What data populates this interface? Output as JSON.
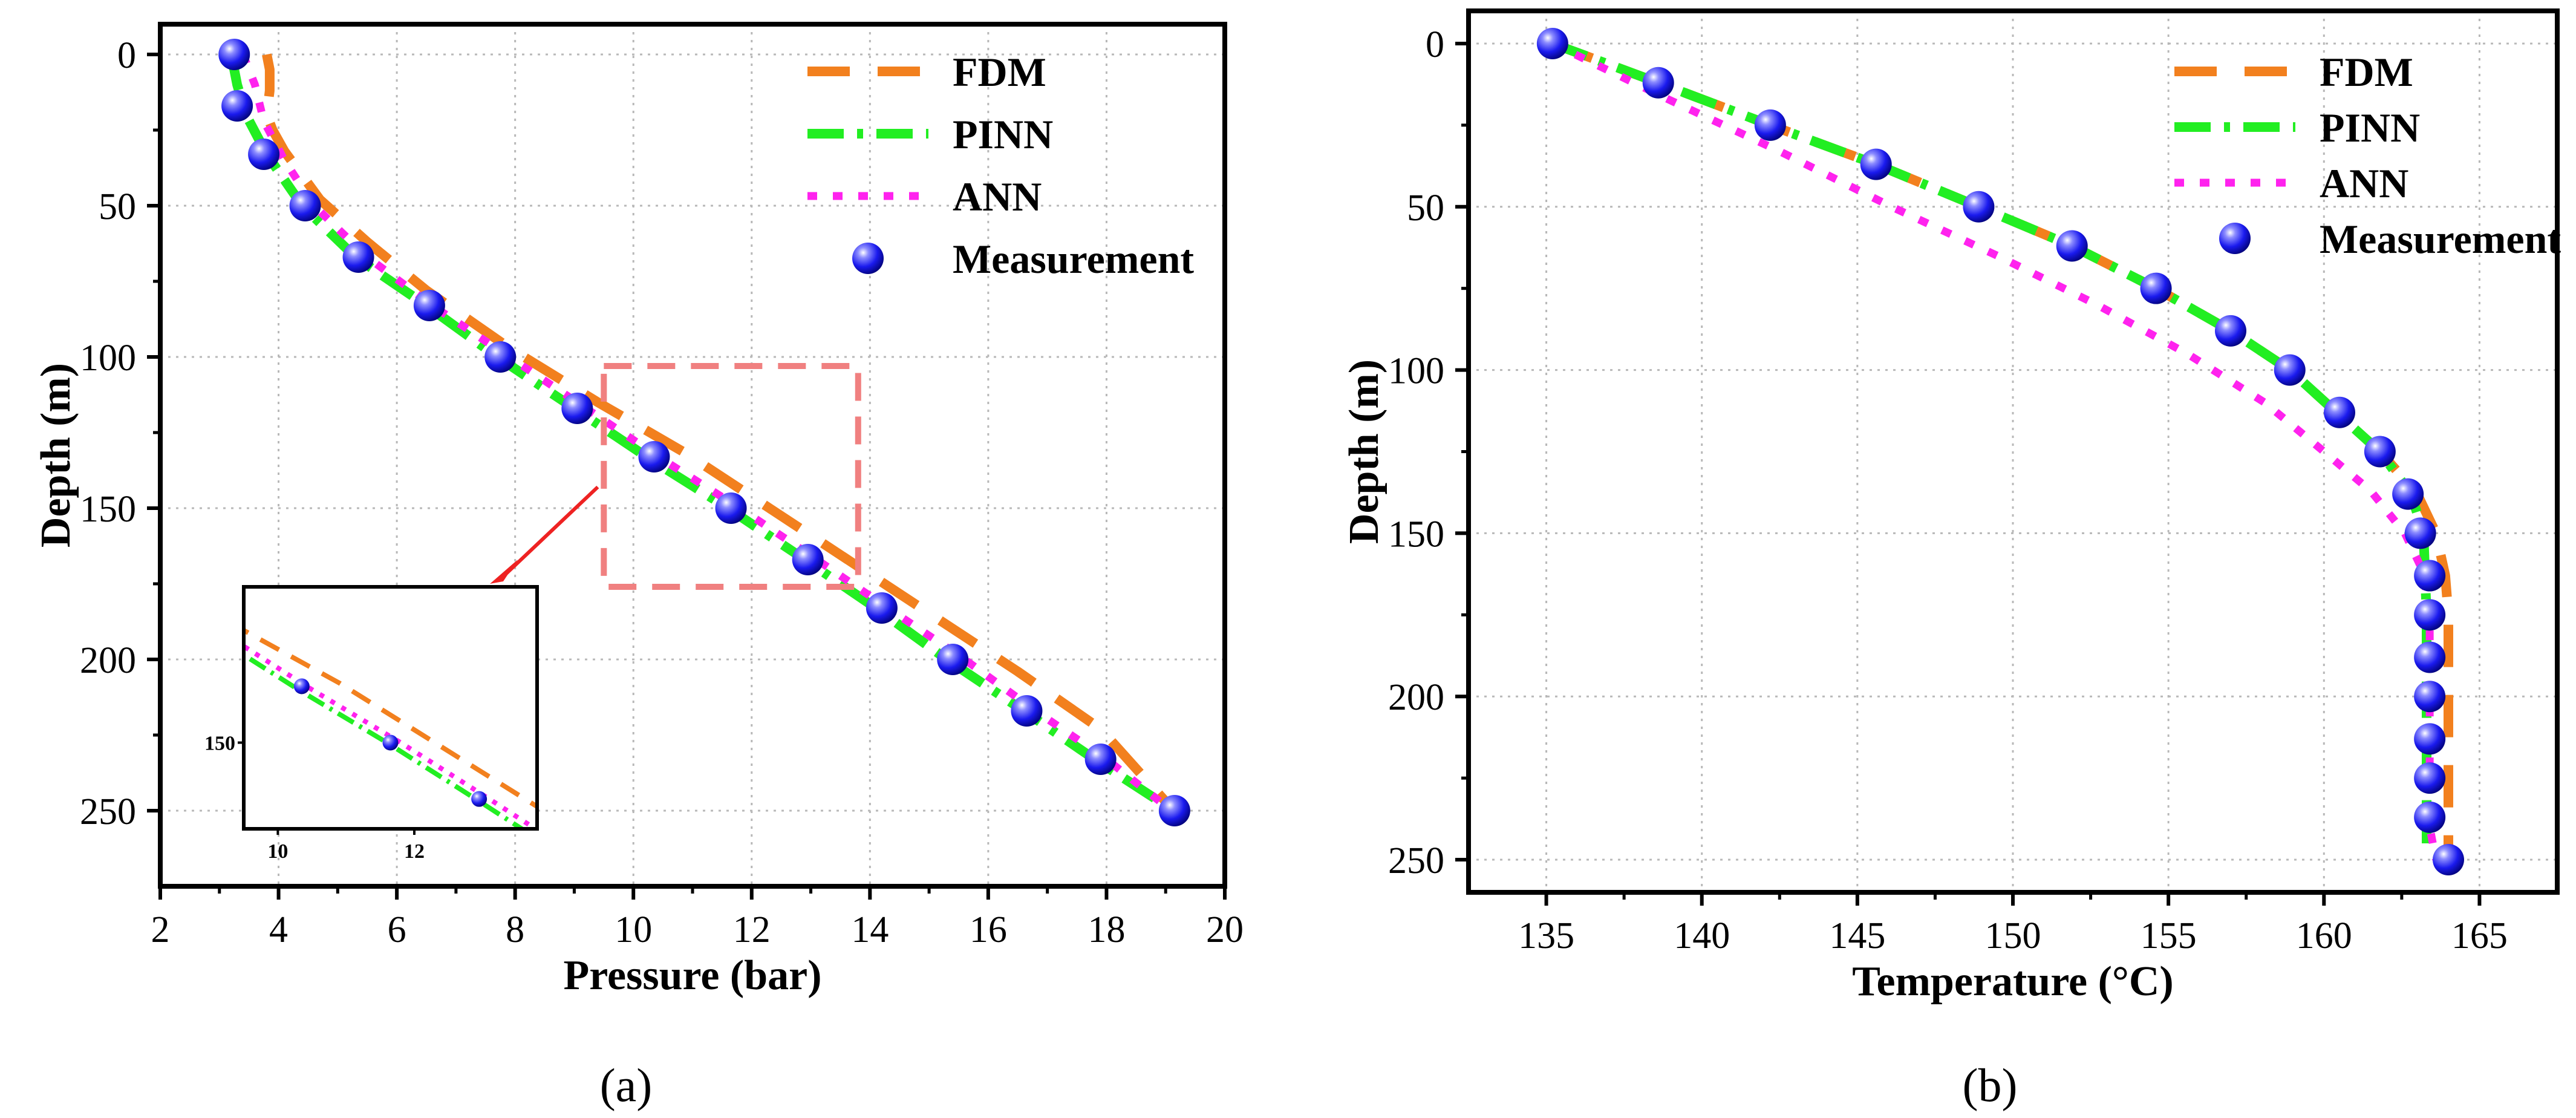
{
  "colors": {
    "fdm": "#f2801e",
    "pinn": "#22ee22",
    "ann": "#ff22ee",
    "measurement": "#1a1aee",
    "zoom_box": "#f08080",
    "arrow": "#ee2222",
    "grid": "#b8b8b8"
  },
  "chart_data": [
    {
      "type": "line",
      "caption": "(a)",
      "xlabel": "Pressure (bar)",
      "ylabel": "Depth (m)",
      "xlim": [
        2,
        20
      ],
      "ylim": [
        275,
        -10
      ],
      "xticks": [
        "2",
        "4",
        "6",
        "8",
        "10",
        "12",
        "14",
        "16",
        "18",
        "20"
      ],
      "yticks": [
        "0",
        "50",
        "100",
        "150",
        "200",
        "250"
      ],
      "legend_position": "top-right",
      "legend": [
        "FDM",
        "PINN",
        "ANN",
        "Measurement"
      ],
      "zoom_region": {
        "x": [
          9.5,
          13.8
        ],
        "y": [
          103,
          176
        ]
      },
      "inset": {
        "xlim": [
          9.5,
          13.8
        ],
        "ylim": [
          176,
          103
        ],
        "xticks": [
          "10",
          "12"
        ],
        "yticks": [
          "150"
        ]
      },
      "series": [
        {
          "name": "FDM",
          "style": "dash",
          "x": [
            3.8,
            3.85,
            3.85,
            3.8,
            3.9,
            4.1,
            4.7,
            5.5,
            6.5,
            7.9,
            9.4,
            10.9,
            12.3,
            13.7,
            15.1,
            16.5,
            17.9,
            19.0
          ],
          "y": [
            0,
            5,
            12,
            20,
            25,
            32,
            48,
            62,
            78,
            97,
            115,
            132,
            150,
            168,
            186,
            204,
            223,
            247
          ]
        },
        {
          "name": "PINN",
          "style": "dashdot",
          "x": [
            3.2,
            3.3,
            3.45,
            3.8,
            4.4,
            5.3,
            6.5,
            7.7,
            9.0,
            10.3,
            11.6,
            12.9,
            14.1,
            15.3,
            16.6,
            17.8,
            18.9
          ],
          "y": [
            0,
            10,
            20,
            33,
            50,
            67,
            83,
            100,
            117,
            134,
            150,
            167,
            183,
            200,
            217,
            233,
            247
          ]
        },
        {
          "name": "ANN",
          "style": "dot",
          "x": [
            3.4,
            3.6,
            3.75,
            4.1,
            4.6,
            5.5,
            6.6,
            7.9,
            9.2,
            10.5,
            11.8,
            13.1,
            14.3,
            15.6,
            16.8,
            18.0,
            19.1
          ],
          "y": [
            0,
            10,
            22,
            35,
            50,
            67,
            83,
            100,
            117,
            134,
            150,
            167,
            183,
            200,
            217,
            233,
            250
          ]
        },
        {
          "name": "Measurement",
          "style": "marker",
          "x": [
            3.25,
            3.3,
            3.75,
            4.45,
            5.35,
            6.55,
            7.75,
            9.05,
            10.35,
            11.65,
            12.95,
            14.2,
            15.4,
            16.65,
            17.9,
            19.15
          ],
          "y": [
            0,
            17,
            33,
            50,
            67,
            83,
            100,
            117,
            133,
            150,
            167,
            183,
            200,
            217,
            233,
            250
          ]
        }
      ]
    },
    {
      "type": "line",
      "caption": "(b)",
      "xlabel": "Temperature (°C)",
      "ylabel": "Depth (m)",
      "xlim": [
        132.5,
        167.5
      ],
      "ylim": [
        260,
        -10
      ],
      "xticks": [
        "135",
        "140",
        "145",
        "150",
        "155",
        "160",
        "165"
      ],
      "yticks": [
        "0",
        "50",
        "100",
        "150",
        "200",
        "250"
      ],
      "legend_position": "top-right",
      "legend": [
        "FDM",
        "PINN",
        "ANN",
        "Measurement"
      ],
      "series": [
        {
          "name": "FDM",
          "style": "dash",
          "x": [
            135.2,
            138.6,
            142.2,
            145.6,
            148.9,
            151.9,
            154.6,
            157.0,
            158.9,
            160.4,
            161.8,
            163.0,
            163.6,
            163.9,
            164.0,
            164.0,
            164.0,
            164.0,
            164.0,
            164.0
          ],
          "y": [
            0,
            12,
            25,
            37,
            50,
            62,
            75,
            88,
            100,
            113,
            125,
            138,
            150,
            163,
            175,
            188,
            200,
            213,
            225,
            250
          ]
        },
        {
          "name": "PINN",
          "style": "dashdot",
          "x": [
            135.2,
            138.6,
            142.2,
            145.6,
            148.9,
            151.9,
            154.6,
            157.0,
            158.9,
            160.4,
            161.8,
            162.8,
            163.2,
            163.3,
            163.3,
            163.3,
            163.3,
            163.3
          ],
          "y": [
            0,
            12,
            25,
            37,
            50,
            62,
            75,
            88,
            100,
            113,
            125,
            138,
            150,
            175,
            200,
            225,
            237,
            245
          ]
        },
        {
          "name": "ANN",
          "style": "dot",
          "x": [
            135.2,
            138.9,
            142.5,
            146.1,
            149.5,
            152.7,
            155.6,
            158.1,
            160.0,
            161.5,
            162.6,
            163.2,
            163.4,
            163.4,
            163.4,
            163.4,
            163.6
          ],
          "y": [
            0,
            17,
            33,
            50,
            65,
            80,
            95,
            110,
            125,
            137,
            150,
            162,
            175,
            200,
            225,
            240,
            250
          ]
        },
        {
          "name": "Measurement",
          "style": "marker",
          "x": [
            135.2,
            138.6,
            142.2,
            145.6,
            148.9,
            151.9,
            154.6,
            157.0,
            158.9,
            160.5,
            161.8,
            162.7,
            163.1,
            163.4,
            163.4,
            163.4,
            163.4,
            163.4,
            163.4,
            163.4,
            164.0
          ],
          "y": [
            0,
            12,
            25,
            37,
            50,
            62,
            75,
            88,
            100,
            113,
            125,
            138,
            150,
            163,
            175,
            188,
            200,
            213,
            225,
            237,
            250
          ]
        }
      ]
    }
  ]
}
